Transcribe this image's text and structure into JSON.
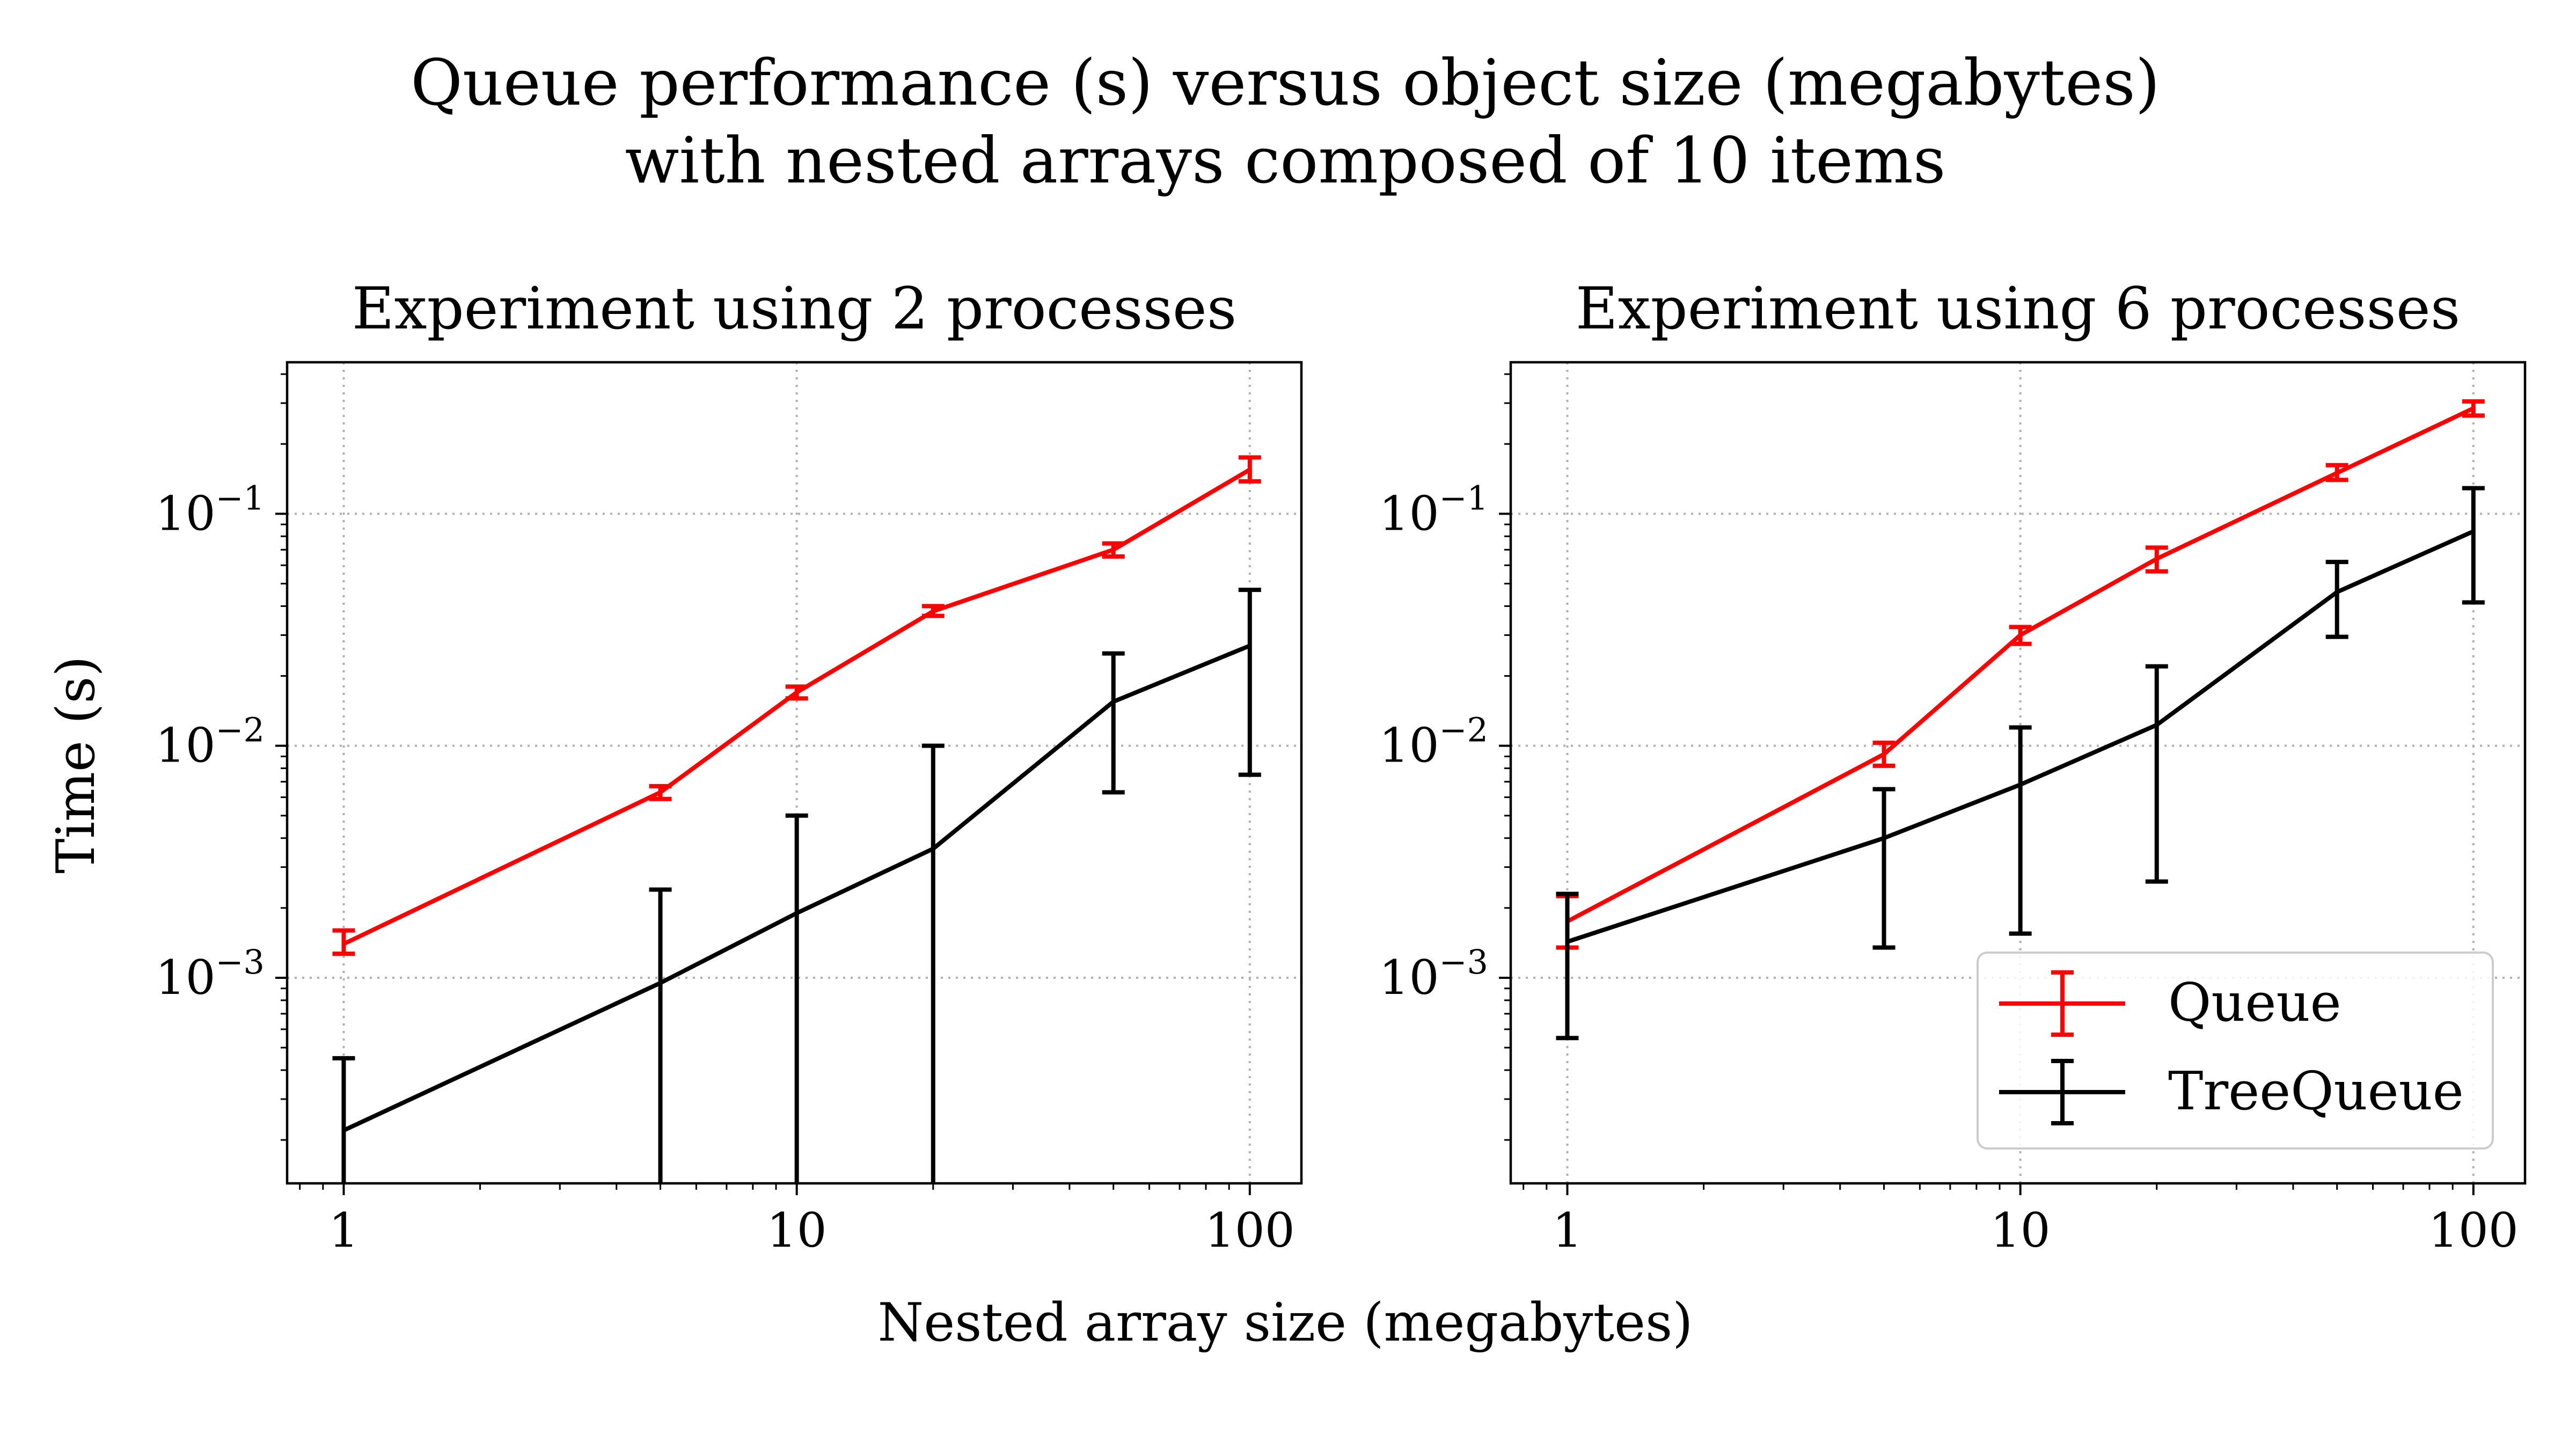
{
  "figure": {
    "title_line1": "Queue performance (s) versus object size (megabytes)",
    "title_line2": "with nested arrays composed of 10 items",
    "xlabel": "Nested array size (megabytes)",
    "ylabel": "Time (s)"
  },
  "legend": {
    "placement": "lower-right of right panel",
    "entries": [
      {
        "label": "Queue",
        "color": "#ff0000"
      },
      {
        "label": "TreeQueue",
        "color": "#000000"
      }
    ]
  },
  "chart_data": [
    {
      "type": "line",
      "title": "Experiment using 2 processes",
      "xscale": "log",
      "yscale": "log",
      "x_ticks": [
        "1",
        "10",
        "100"
      ],
      "y_ticks": [
        "10^-3",
        "10^-2",
        "10^-1"
      ],
      "xlim": [
        0.75,
        130
      ],
      "ylim": [
        0.00013,
        0.45
      ],
      "grid": true,
      "x": [
        1,
        5,
        10,
        20,
        50,
        100
      ],
      "series": [
        {
          "name": "Queue",
          "color": "#ff0000",
          "values": [
            0.0014,
            0.0063,
            0.017,
            0.038,
            0.07,
            0.155
          ],
          "err_low": [
            0.00127,
            0.0059,
            0.016,
            0.0363,
            0.0655,
            0.138
          ],
          "err_high": [
            0.0016,
            0.0067,
            0.018,
            0.04,
            0.0745,
            0.175
          ]
        },
        {
          "name": "TreeQueue",
          "color": "#000000",
          "values": [
            0.00022,
            0.00095,
            0.0019,
            0.0036,
            0.0155,
            0.027
          ],
          "err_low": [
            0.00013,
            0.00013,
            0.00013,
            0.00013,
            0.0063,
            0.0075
          ],
          "err_high": [
            0.00045,
            0.0024,
            0.005,
            0.01,
            0.025,
            0.047
          ]
        }
      ]
    },
    {
      "type": "line",
      "title": "Experiment using 6 processes",
      "xscale": "log",
      "yscale": "log",
      "x_ticks": [
        "1",
        "10",
        "100"
      ],
      "y_ticks": [
        "10^-3",
        "10^-2",
        "10^-1"
      ],
      "xlim": [
        0.75,
        130
      ],
      "ylim": [
        0.00013,
        0.45
      ],
      "grid": true,
      "x": [
        1,
        5,
        10,
        20,
        50,
        100
      ],
      "series": [
        {
          "name": "Queue",
          "color": "#ff0000",
          "values": [
            0.00175,
            0.0092,
            0.03,
            0.064,
            0.15,
            0.285
          ],
          "err_low": [
            0.00135,
            0.0082,
            0.0275,
            0.0565,
            0.14,
            0.265
          ],
          "err_high": [
            0.00225,
            0.0103,
            0.0325,
            0.0715,
            0.162,
            0.305
          ]
        },
        {
          "name": "TreeQueue",
          "color": "#000000",
          "values": [
            0.00143,
            0.004,
            0.0068,
            0.0123,
            0.046,
            0.084
          ],
          "err_low": [
            0.00055,
            0.00135,
            0.00155,
            0.0026,
            0.0295,
            0.0415
          ],
          "err_high": [
            0.0023,
            0.0065,
            0.012,
            0.022,
            0.062,
            0.129
          ]
        }
      ]
    }
  ]
}
